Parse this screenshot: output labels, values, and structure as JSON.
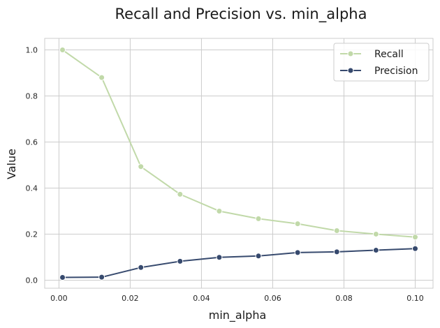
{
  "chart_data": {
    "type": "line",
    "title": "Recall and Precision vs. min_alpha",
    "xlabel": "min_alpha",
    "ylabel": "Value",
    "x": [
      0.001,
      0.012,
      0.023,
      0.034,
      0.045,
      0.056,
      0.067,
      0.078,
      0.089,
      0.1
    ],
    "xlim": [
      -0.004,
      0.105
    ],
    "ylim": [
      -0.035,
      1.05
    ],
    "xticks": [
      0.0,
      0.02,
      0.04,
      0.06,
      0.08,
      0.1
    ],
    "xtick_labels": [
      "0.00",
      "0.02",
      "0.04",
      "0.06",
      "0.08",
      "0.10"
    ],
    "yticks": [
      0.0,
      0.2,
      0.4,
      0.6,
      0.8,
      1.0
    ],
    "ytick_labels": [
      "0.0",
      "0.2",
      "0.4",
      "0.6",
      "0.8",
      "1.0"
    ],
    "grid": true,
    "legend_position": "top-right",
    "series": [
      {
        "name": "Recall",
        "color": "#c1d9a9",
        "marker": "circle",
        "values": [
          1.0,
          0.88,
          0.493,
          0.373,
          0.3,
          0.267,
          0.245,
          0.215,
          0.2,
          0.187
        ]
      },
      {
        "name": "Precision",
        "color": "#374a6e",
        "marker": "circle",
        "values": [
          0.012,
          0.013,
          0.055,
          0.082,
          0.099,
          0.105,
          0.12,
          0.123,
          0.13,
          0.137
        ]
      }
    ]
  }
}
